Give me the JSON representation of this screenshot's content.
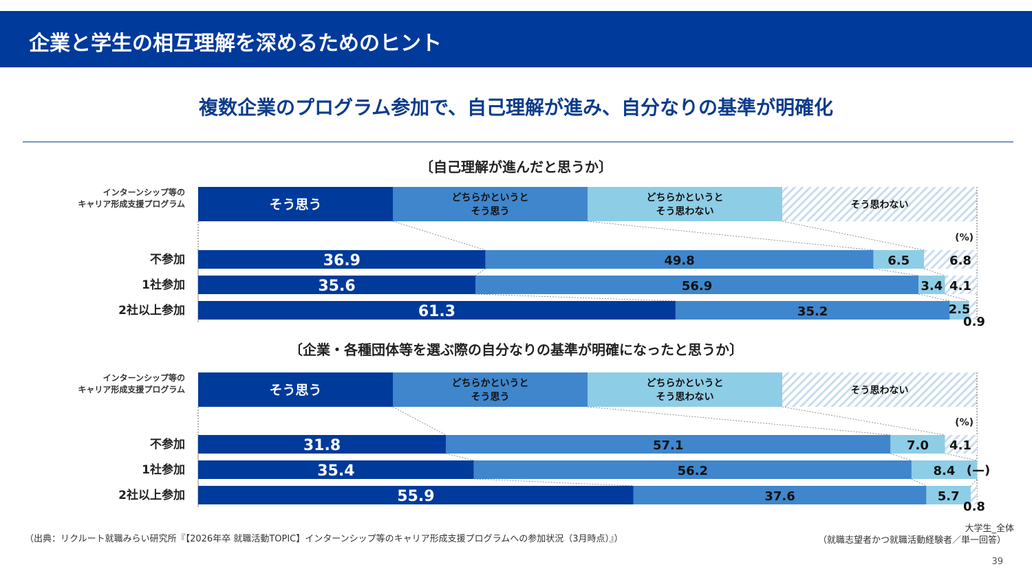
{
  "header": {
    "title": "企業と学生の相互理解を深めるためのヒント"
  },
  "subtitle": "複数企業のプログラム参加で、自己理解が進み、自分なりの基準が明確化",
  "colors": {
    "strongly_agree": "#003A9B",
    "somewhat_agree": "#3F86CC",
    "somewhat_disagree": "#8ECDE6",
    "disagree_hatch": "#C9DCEE",
    "header_bg": "#003A9B"
  },
  "chart_data": [
    {
      "type": "bar",
      "stacked": true,
      "orientation": "horizontal",
      "title": "〔自己理解が進んだと思うか〕",
      "legend_title": [
        "インターンシップ等の",
        "キャリア形成支援プログラム"
      ],
      "legend": [
        {
          "label": [
            "そう思う"
          ]
        },
        {
          "label": [
            "どちらかというと",
            "そう思う"
          ]
        },
        {
          "label": [
            "どちらかというと",
            "そう思わない"
          ]
        },
        {
          "label": [
            "そう思わない"
          ]
        }
      ],
      "unit": "(%)",
      "categories": [
        "不参加",
        "1社参加",
        "2社以上参加"
      ],
      "series": [
        {
          "name": "そう思う",
          "values": [
            36.9,
            35.6,
            61.3
          ],
          "labels": [
            "36.9",
            "35.6",
            "61.3"
          ]
        },
        {
          "name": "どちらかというとそう思う",
          "values": [
            49.8,
            56.9,
            35.2
          ],
          "labels": [
            "49.8",
            "56.9",
            "35.2"
          ]
        },
        {
          "name": "どちらかというとそう思わない",
          "values": [
            6.5,
            3.4,
            2.5
          ],
          "labels": [
            "6.5",
            "3.4",
            "2.5"
          ]
        },
        {
          "name": "そう思わない",
          "values": [
            6.8,
            4.1,
            0.9
          ],
          "labels": [
            "6.8",
            "4.1",
            "0.9"
          ]
        }
      ],
      "xlim": [
        0,
        100
      ]
    },
    {
      "type": "bar",
      "stacked": true,
      "orientation": "horizontal",
      "title": "〔企業・各種団体等を選ぶ際の自分なりの基準が明確になったと思うか〕",
      "legend_title": [
        "インターンシップ等の",
        "キャリア形成支援プログラム"
      ],
      "legend": [
        {
          "label": [
            "そう思う"
          ]
        },
        {
          "label": [
            "どちらかというと",
            "そう思う"
          ]
        },
        {
          "label": [
            "どちらかというと",
            "そう思わない"
          ]
        },
        {
          "label": [
            "そう思わない"
          ]
        }
      ],
      "unit": "(%)",
      "categories": [
        "不参加",
        "1社参加",
        "2社以上参加"
      ],
      "series": [
        {
          "name": "そう思う",
          "values": [
            31.8,
            35.4,
            55.9
          ],
          "labels": [
            "31.8",
            "35.4",
            "55.9"
          ]
        },
        {
          "name": "どちらかというとそう思う",
          "values": [
            57.1,
            56.2,
            37.6
          ],
          "labels": [
            "57.1",
            "56.2",
            "37.6"
          ]
        },
        {
          "name": "どちらかというとそう思わない",
          "values": [
            7.0,
            8.4,
            5.7
          ],
          "labels": [
            "7.0",
            "8.4",
            "5.7"
          ]
        },
        {
          "name": "そう思わない",
          "values": [
            4.1,
            0,
            0.8
          ],
          "labels": [
            "4.1",
            "(—)",
            "0.8"
          ]
        }
      ],
      "xlim": [
        0,
        100
      ]
    }
  ],
  "footer": {
    "source": "（出典：リクルート就職みらい研究所『【2026年卒 就職活動TOPIC】インターンシップ等のキャリア形成支援プログラムへの参加状況（3月時点）』）",
    "sample_1": "大学生_全体",
    "sample_2": "（就職志望者かつ就職活動経験者／単一回答）",
    "page": "39"
  }
}
